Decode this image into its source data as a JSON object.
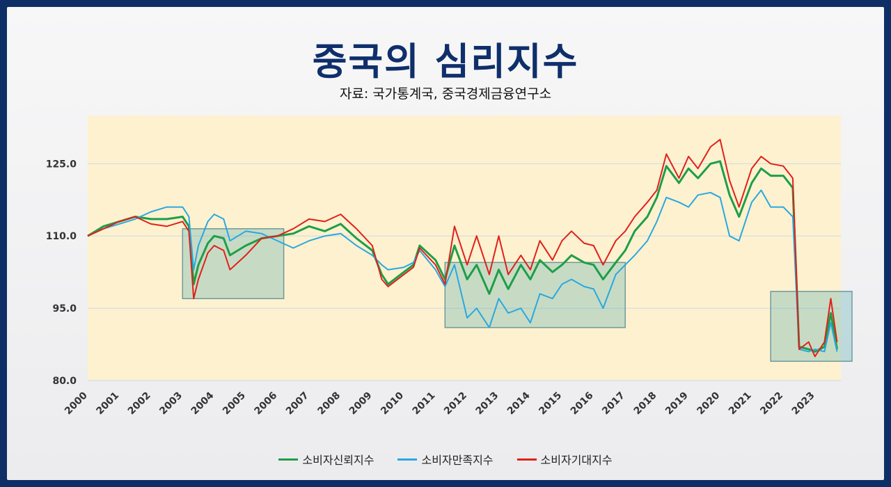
{
  "chart_data": {
    "type": "line",
    "title": "중국의 심리지수",
    "subtitle": "자료: 국가통계국, 중국경제금융연구소",
    "xlabel": "",
    "ylabel": "",
    "ylim": [
      80,
      135
    ],
    "xlim": [
      2000,
      2023.7
    ],
    "y_ticks": [
      80,
      95,
      110,
      125
    ],
    "y_tick_labels": [
      "80.0",
      "95.0",
      "110.0",
      "125.0"
    ],
    "x_ticks": [
      2000,
      2001,
      2002,
      2003,
      2004,
      2005,
      2006,
      2007,
      2008,
      2009,
      2010,
      2011,
      2012,
      2013,
      2014,
      2015,
      2016,
      2017,
      2018,
      2019,
      2020,
      2021,
      2022,
      2023
    ],
    "grid": "horizontal",
    "legend_position": "bottom",
    "highlight_boxes": [
      {
        "x": [
          2003.0,
          2006.2
        ],
        "y": [
          97,
          111.5
        ]
      },
      {
        "x": [
          2011.3,
          2017.0
        ],
        "y": [
          91,
          104.5
        ]
      },
      {
        "x": [
          2021.6,
          2024.9
        ],
        "y": [
          84,
          98.5
        ]
      }
    ],
    "series": [
      {
        "name": "소비자신뢰지수",
        "color": "#1e9e48",
        "x": [
          2000,
          2000.5,
          2001,
          2001.5,
          2002,
          2002.5,
          2003,
          2003.2,
          2003.35,
          2003.5,
          2003.8,
          2004,
          2004.3,
          2004.5,
          2005,
          2005.5,
          2006,
          2006.5,
          2007,
          2007.5,
          2008,
          2008.5,
          2009,
          2009.3,
          2009.5,
          2010,
          2010.3,
          2010.5,
          2011,
          2011.3,
          2011.6,
          2012,
          2012.3,
          2012.7,
          2013,
          2013.3,
          2013.7,
          2014,
          2014.3,
          2014.7,
          2015,
          2015.3,
          2015.7,
          2016,
          2016.3,
          2016.7,
          2017,
          2017.3,
          2017.7,
          2018,
          2018.3,
          2018.7,
          2019,
          2019.3,
          2019.7,
          2020,
          2020.3,
          2020.6,
          2021,
          2021.3,
          2021.6,
          2022,
          2022.3,
          2022.5,
          2022.8,
          2023,
          2023.3,
          2023.5,
          2023.7
        ],
        "values": [
          110,
          112,
          113,
          114,
          113.5,
          113.5,
          114,
          112,
          100,
          104,
          108.5,
          110,
          109.5,
          106,
          108,
          109.5,
          110,
          110.5,
          112,
          111,
          112.5,
          109.5,
          107,
          102,
          100,
          102.5,
          104,
          108,
          105,
          101,
          108,
          101,
          104,
          98,
          103,
          99,
          104,
          101,
          105,
          102.5,
          104,
          106,
          104.5,
          104,
          101,
          104.5,
          107,
          111,
          114,
          118,
          124.5,
          121,
          124,
          122,
          125,
          125.5,
          118.5,
          114,
          121,
          124,
          122.5,
          122.5,
          120,
          87,
          86.5,
          86,
          87,
          94,
          86.5
        ]
      },
      {
        "name": "소비자만족지수",
        "color": "#29a8e0",
        "x": [
          2000,
          2000.5,
          2001,
          2001.5,
          2002,
          2002.5,
          2003,
          2003.2,
          2003.35,
          2003.5,
          2003.8,
          2004,
          2004.3,
          2004.5,
          2005,
          2005.5,
          2006,
          2006.5,
          2007,
          2007.5,
          2008,
          2008.5,
          2009,
          2009.3,
          2009.5,
          2010,
          2010.3,
          2010.5,
          2011,
          2011.3,
          2011.6,
          2012,
          2012.3,
          2012.7,
          2013,
          2013.3,
          2013.7,
          2014,
          2014.3,
          2014.7,
          2015,
          2015.3,
          2015.7,
          2016,
          2016.3,
          2016.7,
          2017,
          2017.3,
          2017.7,
          2018,
          2018.3,
          2018.7,
          2019,
          2019.3,
          2019.7,
          2020,
          2020.3,
          2020.6,
          2021,
          2021.3,
          2021.6,
          2022,
          2022.3,
          2022.5,
          2022.8,
          2023,
          2023.3,
          2023.5,
          2023.7
        ],
        "values": [
          110,
          111.5,
          112.5,
          113.5,
          115,
          116,
          116,
          114,
          103,
          108,
          113,
          114.5,
          113.5,
          109,
          111,
          110.5,
          109,
          107.5,
          109,
          110,
          110.5,
          108,
          106,
          104,
          103,
          103.5,
          104.5,
          107,
          103,
          99.5,
          104,
          93,
          95,
          91,
          97,
          94,
          95,
          92,
          98,
          97,
          100,
          101,
          99.5,
          99,
          95,
          102,
          104,
          106,
          109,
          113,
          118,
          117,
          116,
          118.5,
          119,
          118,
          110,
          109,
          117,
          119.5,
          116,
          116,
          114,
          86.5,
          86,
          86.5,
          86,
          92,
          86
        ]
      },
      {
        "name": "소비자기대지수",
        "color": "#e0201c",
        "x": [
          2000,
          2000.5,
          2001,
          2001.5,
          2002,
          2002.5,
          2003,
          2003.2,
          2003.35,
          2003.5,
          2003.8,
          2004,
          2004.3,
          2004.5,
          2005,
          2005.5,
          2006,
          2006.5,
          2007,
          2007.5,
          2008,
          2008.5,
          2009,
          2009.3,
          2009.5,
          2010,
          2010.3,
          2010.5,
          2011,
          2011.3,
          2011.6,
          2012,
          2012.3,
          2012.7,
          2013,
          2013.3,
          2013.7,
          2014,
          2014.3,
          2014.7,
          2015,
          2015.3,
          2015.7,
          2016,
          2016.3,
          2016.7,
          2017,
          2017.3,
          2017.7,
          2018,
          2018.3,
          2018.7,
          2019,
          2019.3,
          2019.7,
          2020,
          2020.3,
          2020.6,
          2021,
          2021.3,
          2021.6,
          2022,
          2022.3,
          2022.5,
          2022.8,
          2023,
          2023.3,
          2023.5,
          2023.7
        ],
        "values": [
          110,
          111.5,
          113,
          114,
          112.5,
          112,
          113,
          111,
          97,
          101,
          106.5,
          108,
          107,
          103,
          106,
          109.5,
          110,
          111.5,
          113.5,
          113,
          114.5,
          111.5,
          108,
          101,
          99.5,
          102,
          103.5,
          107.5,
          104,
          100,
          112,
          104,
          110,
          102,
          110,
          102,
          106,
          103,
          109,
          105,
          109,
          111,
          108.5,
          108,
          104,
          109,
          111,
          114,
          117,
          119.5,
          127,
          122,
          126.5,
          124,
          128.5,
          130,
          121.5,
          116,
          124,
          126.5,
          125,
          124.5,
          122,
          86.5,
          88,
          85,
          88,
          97,
          88
        ]
      }
    ]
  }
}
